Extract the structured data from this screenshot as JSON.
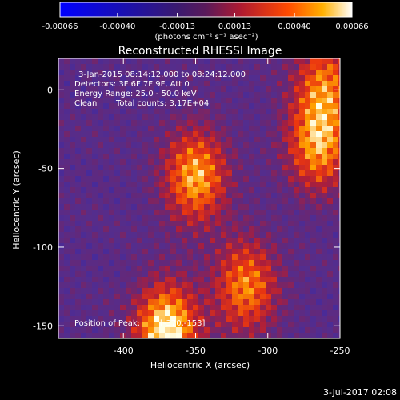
{
  "colorbar": {
    "ticks": [
      "-0.00066",
      "-0.00040",
      "-0.00013",
      "0.00013",
      "0.00040",
      "0.00066"
    ],
    "tick_values": [
      -0.00066,
      -0.0004,
      -0.00013,
      0.00013,
      0.0004,
      0.00066
    ],
    "range": [
      -0.00066,
      0.00066
    ],
    "units": "(photons cm⁻² s⁻¹ asec⁻²)"
  },
  "chart_data": {
    "type": "heatmap",
    "title": "Reconstructed RHESSI Image",
    "xlabel": "Heliocentric X (arcsec)",
    "ylabel": "Heliocentric Y (arcsec)",
    "xlim": [
      -445,
      -250
    ],
    "ylim": [
      -158,
      20
    ],
    "xticks": [
      -400,
      -350,
      -300,
      -250
    ],
    "yticks": [
      0,
      -50,
      -100,
      -150
    ],
    "xtick_labels": [
      "-400",
      "-350",
      "-300",
      "-250"
    ],
    "ytick_labels": [
      "0",
      "-50",
      "-100",
      "-150"
    ],
    "sources": [
      {
        "x": -370,
        "y": -153,
        "peak": 1.0
      },
      {
        "x": -350,
        "y": -55,
        "peak": 0.8
      },
      {
        "x": -265,
        "y": -35,
        "peak": 0.75
      },
      {
        "x": -315,
        "y": -125,
        "peak": 0.7
      },
      {
        "x": -260,
        "y": 5,
        "peak": 0.6
      }
    ],
    "annotations": {
      "time": "3-Jan-2015 08:14:12.000 to 08:24:12.000",
      "detectors": "Detectors: 3F 6F 7F 9F, Att 0",
      "energy": "Energy Range: 25.0 - 50.0 keV",
      "clean": "Clean",
      "counts": "Total counts: 3.17E+04",
      "peak_label": "Position of Peak: ",
      "peak_value": "[-370,-153]"
    }
  },
  "footer": {
    "date": "3-Jul-2017 02:08"
  }
}
